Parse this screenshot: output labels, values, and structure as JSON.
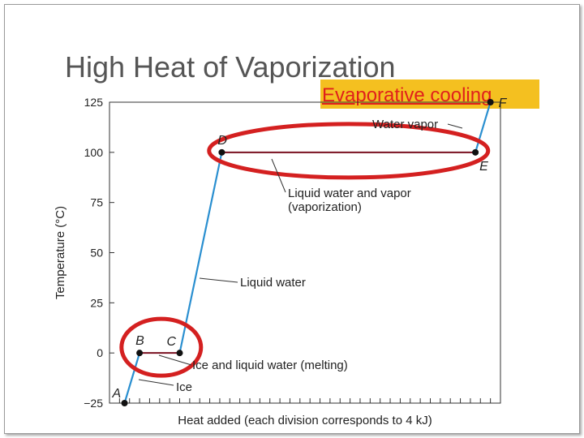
{
  "slide": {
    "title": "High Heat of Vaporization",
    "highlight": "Evaporative cooling"
  },
  "chart_data": {
    "type": "line",
    "title": "",
    "xlabel": "Heat added (each division corresponds to 4 kJ)",
    "ylabel": "Temperature (°C)",
    "ylim": [
      -25,
      125
    ],
    "yticks": [
      125,
      100,
      75,
      50,
      25,
      0,
      "−25"
    ],
    "ytick_values": [
      125,
      100,
      75,
      50,
      25,
      0,
      -25
    ],
    "xlim": [
      0,
      39
    ],
    "grid": false,
    "series": [
      {
        "x": [
          1.5,
          3.0,
          7.0,
          11.2,
          36.5,
          38.0
        ],
        "y": [
          -25,
          0,
          0,
          100,
          100,
          125
        ]
      }
    ],
    "points": [
      {
        "label": "A",
        "x": 1.5,
        "y": -25
      },
      {
        "label": "B",
        "x": 3.0,
        "y": 0
      },
      {
        "label": "C",
        "x": 7.0,
        "y": 0
      },
      {
        "label": "D",
        "x": 11.2,
        "y": 100
      },
      {
        "label": "E",
        "x": 36.5,
        "y": 100
      },
      {
        "label": "F",
        "x": 38.0,
        "y": 125
      }
    ],
    "annotations": [
      {
        "text": "Water vapor"
      },
      {
        "text": "Liquid water and vapor"
      },
      {
        "text": "(vaporization)"
      },
      {
        "text": "Liquid water"
      },
      {
        "text": "Ice and liquid water (melting)"
      },
      {
        "text": "Ice"
      }
    ]
  }
}
